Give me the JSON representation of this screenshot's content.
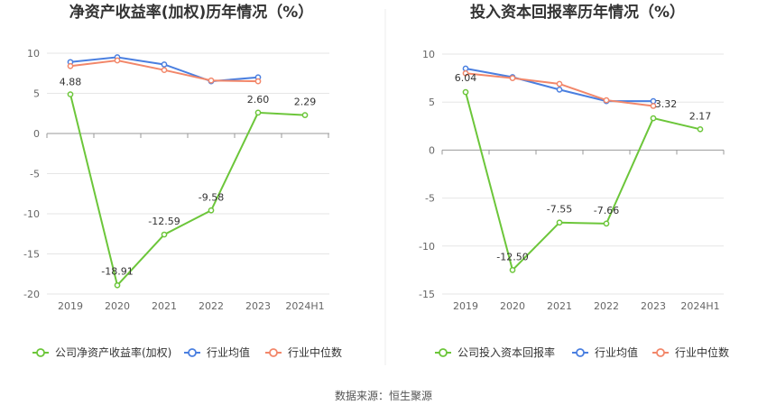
{
  "source": "数据来源：恒生聚源",
  "colors": {
    "company": "#6cc63a",
    "avg": "#4a7fe0",
    "median": "#f2876a",
    "grid": "#e6e6e6",
    "axis": "#999999"
  },
  "chart_data": [
    {
      "type": "line",
      "title": "净资产收益率(加权)历年情况（%）",
      "categories": [
        "2019",
        "2020",
        "2021",
        "2022",
        "2023",
        "2024H1"
      ],
      "ylim": [
        -20,
        10
      ],
      "yticks": [
        10,
        5,
        0,
        -5,
        -10,
        -15,
        -20
      ],
      "grid": true,
      "legend_position": "bottom",
      "series": [
        {
          "name": "公司净资产收益率(加权)",
          "key": "company",
          "values": [
            4.88,
            -18.91,
            -12.59,
            -9.58,
            2.6,
            2.29
          ],
          "labels": [
            "4.88",
            "-18.91",
            "-12.59",
            "-9.58",
            "2.60",
            "2.29"
          ]
        },
        {
          "name": "行业均值",
          "key": "avg",
          "values": [
            8.9,
            9.5,
            8.6,
            6.5,
            7.0,
            null
          ]
        },
        {
          "name": "行业中位数",
          "key": "median",
          "values": [
            8.4,
            9.1,
            7.9,
            6.6,
            6.5,
            null
          ]
        }
      ]
    },
    {
      "type": "line",
      "title": "投入资本回报率历年情况（%）",
      "categories": [
        "2019",
        "2020",
        "2021",
        "2022",
        "2023",
        "2024H1"
      ],
      "ylim": [
        -15,
        10
      ],
      "yticks": [
        10,
        5,
        0,
        -5,
        -10,
        -15
      ],
      "grid": true,
      "legend_position": "bottom",
      "series": [
        {
          "name": "公司投入资本回报率",
          "key": "company",
          "values": [
            6.04,
            -12.5,
            -7.55,
            -7.66,
            3.32,
            2.17
          ],
          "labels": [
            "6.04",
            "-12.50",
            "-7.55",
            "-7.66",
            "3.32",
            "2.17"
          ]
        },
        {
          "name": "行业均值",
          "key": "avg",
          "values": [
            8.5,
            7.6,
            6.3,
            5.1,
            5.1,
            null
          ]
        },
        {
          "name": "行业中位数",
          "key": "median",
          "values": [
            8.0,
            7.5,
            6.9,
            5.2,
            4.6,
            null
          ]
        }
      ]
    }
  ]
}
